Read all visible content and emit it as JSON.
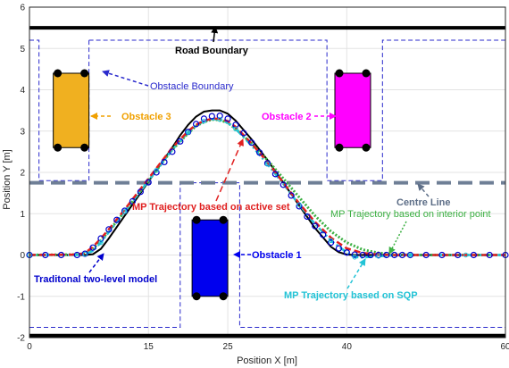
{
  "chart_data": {
    "type": "line",
    "title": "",
    "xlabel": "Position X [m]",
    "ylabel": "Position Y [m]",
    "xlim": [
      0,
      60
    ],
    "ylim": [
      -2,
      6
    ],
    "xticks": [
      0,
      15,
      25,
      40,
      60
    ],
    "yticks": [
      -2,
      -1,
      0,
      1,
      2,
      3,
      4,
      5,
      6
    ],
    "grid": true,
    "road_boundary": {
      "y": [
        5.5,
        -1.95
      ],
      "color": "#000000"
    },
    "centre_line": {
      "y": 1.75,
      "color": "#6f7f96"
    },
    "obstacles": [
      {
        "name": "Obstacle 1",
        "x": [
          20.5,
          25
        ],
        "y": [
          -1,
          0.85
        ],
        "color": "#0000ee"
      },
      {
        "name": "Obstacle 2",
        "x": [
          38.5,
          43
        ],
        "y": [
          2.6,
          4.4
        ],
        "color": "#ff00ff"
      },
      {
        "name": "Obstacle 3",
        "x": [
          3,
          7.5
        ],
        "y": [
          2.6,
          4.4
        ],
        "color": "#f0b020"
      }
    ],
    "obstacle_boundaries": [
      {
        "x": [
          0,
          1.2,
          1.2,
          7.5,
          7.5
        ],
        "y": [
          5.2,
          5.2,
          1.8,
          1.8,
          5.2
        ]
      },
      {
        "x": [
          7.5,
          37.5,
          37.5,
          44.5,
          44.5,
          60
        ],
        "y": [
          5.2,
          5.2,
          1.8,
          1.8,
          5.2,
          5.2
        ]
      },
      {
        "x": [
          0,
          19,
          19,
          26.5,
          26.5,
          60
        ],
        "y": [
          -1.75,
          -1.75,
          1.75,
          1.75,
          -1.75,
          -1.75
        ]
      }
    ],
    "series": [
      {
        "name": "Traditonal two-level model",
        "color": "#000000",
        "x": [
          0,
          7,
          8,
          9,
          10,
          12,
          14,
          16,
          18,
          19,
          20,
          21,
          22,
          23,
          24,
          25,
          26,
          28,
          30,
          32,
          34,
          36,
          38,
          39,
          40,
          41,
          42,
          44,
          46,
          48,
          50,
          55,
          60
        ],
        "y": [
          0,
          0,
          0.02,
          0.15,
          0.4,
          0.95,
          1.5,
          2.05,
          2.6,
          2.9,
          3.15,
          3.35,
          3.47,
          3.5,
          3.5,
          3.42,
          3.25,
          2.8,
          2.3,
          1.75,
          1.2,
          0.65,
          0.2,
          0.07,
          0.01,
          0,
          0,
          0,
          0,
          0,
          0,
          0,
          0
        ]
      },
      {
        "name": "MP Trajectory based on active set",
        "color": "#e02020",
        "x": [
          0,
          6,
          7,
          8,
          9,
          10,
          12,
          14,
          16,
          18,
          20,
          21,
          22,
          23,
          24,
          25,
          26,
          28,
          30,
          32,
          34,
          36,
          38,
          40,
          42,
          44,
          46,
          48,
          50,
          55,
          60
        ],
        "y": [
          0,
          0.01,
          0.05,
          0.2,
          0.4,
          0.62,
          1.1,
          1.6,
          2.1,
          2.6,
          3.0,
          3.15,
          3.25,
          3.3,
          3.3,
          3.24,
          3.1,
          2.7,
          2.25,
          1.75,
          1.25,
          0.8,
          0.42,
          0.16,
          0.05,
          0.01,
          0,
          0,
          0,
          0,
          0
        ]
      },
      {
        "name": "MP Trajectory based on interior point",
        "color": "#3cb043",
        "x": [
          0,
          6,
          7,
          8,
          9,
          10,
          12,
          14,
          16,
          18,
          20,
          21,
          22,
          23,
          24,
          25,
          26,
          28,
          30,
          32,
          34,
          36,
          38,
          40,
          42,
          44,
          46,
          48,
          50,
          55,
          60
        ],
        "y": [
          0,
          0.01,
          0.04,
          0.15,
          0.35,
          0.58,
          1.05,
          1.55,
          2.05,
          2.55,
          2.95,
          3.12,
          3.22,
          3.28,
          3.27,
          3.2,
          3.05,
          2.7,
          2.3,
          1.85,
          1.4,
          0.95,
          0.57,
          0.3,
          0.13,
          0.05,
          0.02,
          0,
          0,
          0,
          0
        ]
      },
      {
        "name": "MP Trajectory based on SQP",
        "color": "#22c3d6",
        "x": [
          0,
          6,
          7,
          8,
          9,
          10,
          12,
          14,
          16,
          18,
          20,
          21,
          22,
          23,
          24,
          25,
          26,
          28,
          30,
          32,
          34,
          36,
          38,
          40,
          41,
          42,
          44,
          46,
          48,
          50,
          55,
          60
        ],
        "y": [
          0,
          0,
          0.02,
          0.1,
          0.3,
          0.55,
          1.05,
          1.55,
          2.05,
          2.55,
          2.97,
          3.13,
          3.24,
          3.29,
          3.28,
          3.2,
          3.05,
          2.65,
          2.2,
          1.72,
          1.22,
          0.75,
          0.35,
          0.06,
          -0.05,
          -0.06,
          -0.03,
          -0.01,
          0,
          0,
          0,
          0
        ]
      },
      {
        "name": "Traditonal two-level model (marker)",
        "color": "#0000cc",
        "x": [
          0,
          2,
          4,
          6,
          7,
          8,
          9,
          10,
          11,
          12,
          13,
          14,
          15,
          16,
          17,
          18,
          19,
          20,
          21,
          22,
          23,
          24,
          25,
          26,
          27,
          28,
          29,
          30,
          31,
          32,
          33,
          34,
          35,
          36,
          37,
          38,
          39,
          40,
          41,
          42,
          43,
          44,
          45,
          46,
          47,
          48,
          50,
          52,
          54,
          56,
          58,
          60
        ],
        "y": [
          0,
          0,
          0,
          0,
          0.03,
          0.18,
          0.4,
          0.62,
          0.85,
          1.07,
          1.3,
          1.53,
          1.76,
          2.0,
          2.25,
          2.5,
          2.75,
          2.98,
          3.17,
          3.3,
          3.36,
          3.37,
          3.3,
          3.15,
          2.95,
          2.72,
          2.48,
          2.22,
          1.96,
          1.7,
          1.44,
          1.18,
          0.93,
          0.7,
          0.49,
          0.3,
          0.16,
          0.06,
          0.01,
          0,
          0,
          0,
          0,
          0,
          0,
          0,
          0,
          0,
          0,
          0,
          0,
          0
        ]
      }
    ],
    "annotations": {
      "road_boundary": "Road Boundary",
      "obstacle_boundary": "Obstacle Boundary",
      "obstacle_1": "Obstacle 1",
      "obstacle_2": "Obstacle 2",
      "obstacle_3": "Obstacle 3",
      "centre_line": "Centre Line",
      "active_set": "MP Trajectory based on active set",
      "interior_point": "MP Trajectory based on interior point",
      "sqp": "MP Trajectory based on SQP",
      "two_level": "Traditonal two-level model"
    }
  }
}
